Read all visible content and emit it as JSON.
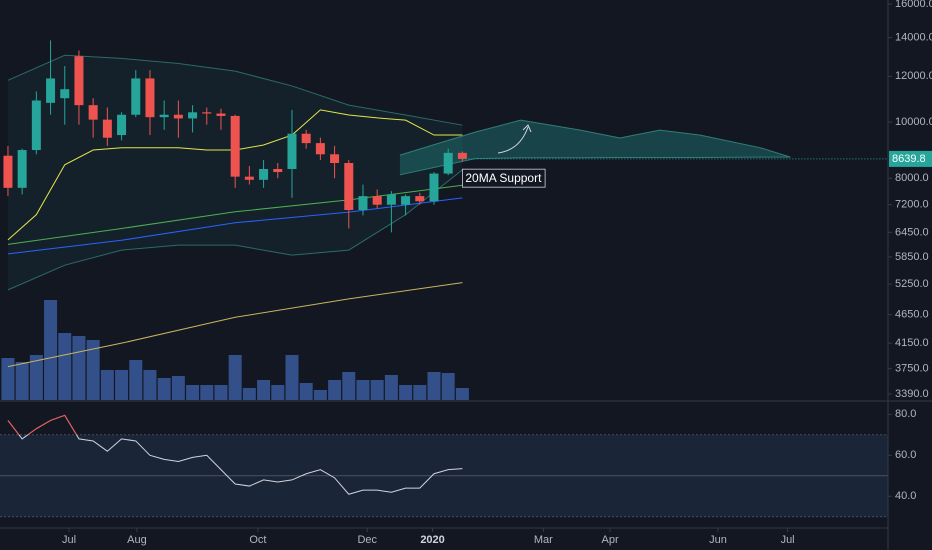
{
  "chart_data": [
    {
      "type": "candlestick",
      "log_scale": true,
      "x": [
        0,
        1,
        2,
        3,
        4,
        5,
        6,
        7,
        8,
        9,
        10,
        11,
        12,
        13,
        14,
        15,
        16,
        17,
        18,
        19,
        20,
        21,
        22,
        23,
        24,
        25,
        26,
        27,
        28,
        29,
        30,
        31,
        32
      ],
      "ohlc": [
        [
          8750,
          9100,
          7450,
          7700
        ],
        [
          7700,
          9000,
          7500,
          8950
        ],
        [
          8950,
          11300,
          8800,
          10900
        ],
        [
          10800,
          13850,
          10300,
          11900
        ],
        [
          11000,
          12500,
          9900,
          11400
        ],
        [
          13000,
          13300,
          9900,
          10700
        ],
        [
          10700,
          11000,
          9400,
          10100
        ],
        [
          10100,
          10600,
          9100,
          9400
        ],
        [
          9500,
          10400,
          9300,
          10300
        ],
        [
          10300,
          12300,
          10200,
          11900
        ],
        [
          11900,
          12300,
          9500,
          10200
        ],
        [
          10200,
          10900,
          9700,
          10300
        ],
        [
          10300,
          10900,
          9400,
          10150
        ],
        [
          10150,
          10700,
          9600,
          10400
        ],
        [
          10400,
          10600,
          9900,
          10350
        ],
        [
          10350,
          10550,
          9700,
          10250
        ],
        [
          10250,
          10300,
          7700,
          8050
        ],
        [
          8050,
          8400,
          7800,
          7950
        ],
        [
          7950,
          8600,
          7700,
          8300
        ],
        [
          8300,
          8500,
          8000,
          8200
        ],
        [
          8300,
          10500,
          7400,
          9550
        ],
        [
          9550,
          9700,
          9000,
          9200
        ],
        [
          9200,
          9400,
          8600,
          8800
        ],
        [
          8800,
          9100,
          8000,
          8500
        ],
        [
          8500,
          8600,
          6550,
          7050
        ],
        [
          7050,
          7800,
          6900,
          7450
        ],
        [
          7450,
          7650,
          7100,
          7200
        ],
        [
          7200,
          7600,
          6450,
          7500
        ],
        [
          7200,
          7500,
          6900,
          7450
        ],
        [
          7450,
          7550,
          7200,
          7300
        ],
        [
          7300,
          8200,
          7200,
          8150
        ],
        [
          8150,
          9000,
          8100,
          8850
        ],
        [
          8850,
          8900,
          8550,
          8640
        ]
      ],
      "up_color": "#26a69a",
      "down_color": "#ef5350",
      "volume": [
        42,
        38,
        45,
        100,
        67,
        64,
        60,
        30,
        30,
        40,
        30,
        22,
        24,
        15,
        15,
        15,
        45,
        12,
        20,
        15,
        45,
        17,
        10,
        20,
        28,
        20,
        20,
        25,
        15,
        15,
        28,
        27,
        12
      ],
      "volume_color": "#3a5a9c",
      "vlim": [
        0,
        100
      ],
      "ylim": [
        3310,
        16260
      ],
      "yticks": [
        {
          "value": 16000,
          "label": "16000.0"
        },
        {
          "value": 14000,
          "label": "14000.0"
        },
        {
          "value": 12000,
          "label": "12000.0"
        },
        {
          "value": 10000,
          "label": "10000.0"
        },
        {
          "value": 8000,
          "label": "8000.0"
        },
        {
          "value": 7200,
          "label": "7200.0"
        },
        {
          "value": 6450,
          "label": "6450.0"
        },
        {
          "value": 5850,
          "label": "5850.0"
        },
        {
          "value": 5250,
          "label": "5250.0"
        },
        {
          "value": 4650,
          "label": "4650.0"
        },
        {
          "value": 4150,
          "label": "4150.0"
        },
        {
          "value": 3750,
          "label": "3750.0"
        },
        {
          "value": 3390,
          "label": "3390.0"
        }
      ],
      "xlim": [
        -0.56,
        61.97
      ],
      "xticks": [
        {
          "value": 4.3,
          "label": "Jul"
        },
        {
          "value": 9.08,
          "label": "Aug"
        },
        {
          "value": 17.6,
          "label": "Oct"
        },
        {
          "value": 25.3,
          "label": "Dec"
        },
        {
          "value": 29.9,
          "label": "2020"
        },
        {
          "value": 37.7,
          "label": "Mar"
        },
        {
          "value": 42.4,
          "label": "Apr"
        },
        {
          "value": 50.0,
          "label": "Jun"
        },
        {
          "value": 54.9,
          "label": "Jul"
        }
      ],
      "bands": [
        {
          "color": "#2a6b68",
          "fill": "rgba(38,166,154,0.07)",
          "x": [
            0,
            4,
            8,
            12,
            16,
            20,
            24,
            28,
            32
          ],
          "upper": [
            11810,
            13050,
            12890,
            12630,
            12250,
            11550,
            10700,
            10290,
            9880
          ],
          "lower": [
            5130,
            5660,
            6010,
            6130,
            6130,
            5890,
            6010,
            6920,
            8270
          ]
        },
        {
          "color": "#2f7f78",
          "fill": "rgba(38,166,154,0.32)",
          "x": [
            27.6,
            32.9,
            36.1,
            40.3,
            43.1,
            45.9,
            48.7,
            53,
            55.1
          ],
          "upper": [
            8770,
            9610,
            10080,
            9690,
            9390,
            9690,
            9500,
            9030,
            8700
          ],
          "lower": [
            8110,
            8650,
            8680,
            8680,
            8690,
            8690,
            8690,
            8700,
            8700
          ]
        }
      ],
      "overlays": [
        {
          "color": "#e5e54a",
          "x": [
            0,
            2,
            4,
            6,
            8,
            10,
            12,
            14,
            16,
            18,
            20,
            22,
            24,
            26,
            28,
            30,
            32
          ],
          "values": [
            6260,
            6920,
            8440,
            8950,
            9030,
            9030,
            9030,
            8950,
            8950,
            9130,
            9500,
            10500,
            10290,
            10170,
            10080,
            9500,
            9500
          ]
        },
        {
          "color": "#4caf50",
          "x": [
            0,
            8,
            16,
            24,
            32
          ],
          "values": [
            6150,
            6550,
            7000,
            7340,
            7780
          ]
        },
        {
          "color": "#2962ff",
          "x": [
            0,
            8,
            16,
            24,
            32
          ],
          "values": [
            5920,
            6250,
            6700,
            6990,
            7400
          ]
        },
        {
          "color": "#c8b560",
          "x": [
            0,
            8,
            16,
            24,
            32
          ],
          "values": [
            3780,
            4150,
            4600,
            4950,
            5280
          ]
        }
      ],
      "last_price": 8639.8,
      "last_price_color": "#26a69a",
      "annotation": "20MA Support"
    },
    {
      "type": "line",
      "x": [
        0,
        1,
        2,
        3,
        4,
        5,
        6,
        7,
        8,
        9,
        10,
        11,
        12,
        13,
        14,
        15,
        16,
        17,
        18,
        19,
        20,
        21,
        22,
        23,
        24,
        25,
        26,
        27,
        28,
        29,
        30,
        31,
        32
      ],
      "values": [
        77,
        68,
        73,
        77,
        79.5,
        68,
        67,
        62,
        68,
        67,
        60,
        58,
        57,
        59,
        60,
        53,
        46,
        45,
        48,
        47,
        48,
        51,
        53,
        49,
        41,
        43,
        43,
        42,
        44,
        44,
        51,
        53,
        53.5
      ],
      "color": "#d1d4dc",
      "overbought_color": "#ef5350",
      "ylim": [
        26,
        86
      ],
      "yticks": [
        {
          "value": 80,
          "label": "80.0"
        },
        {
          "value": 60,
          "label": "60.0"
        },
        {
          "value": 40,
          "label": "40.0"
        }
      ],
      "levels": [
        30,
        50,
        70
      ],
      "band_fill": "#1b2538"
    }
  ]
}
